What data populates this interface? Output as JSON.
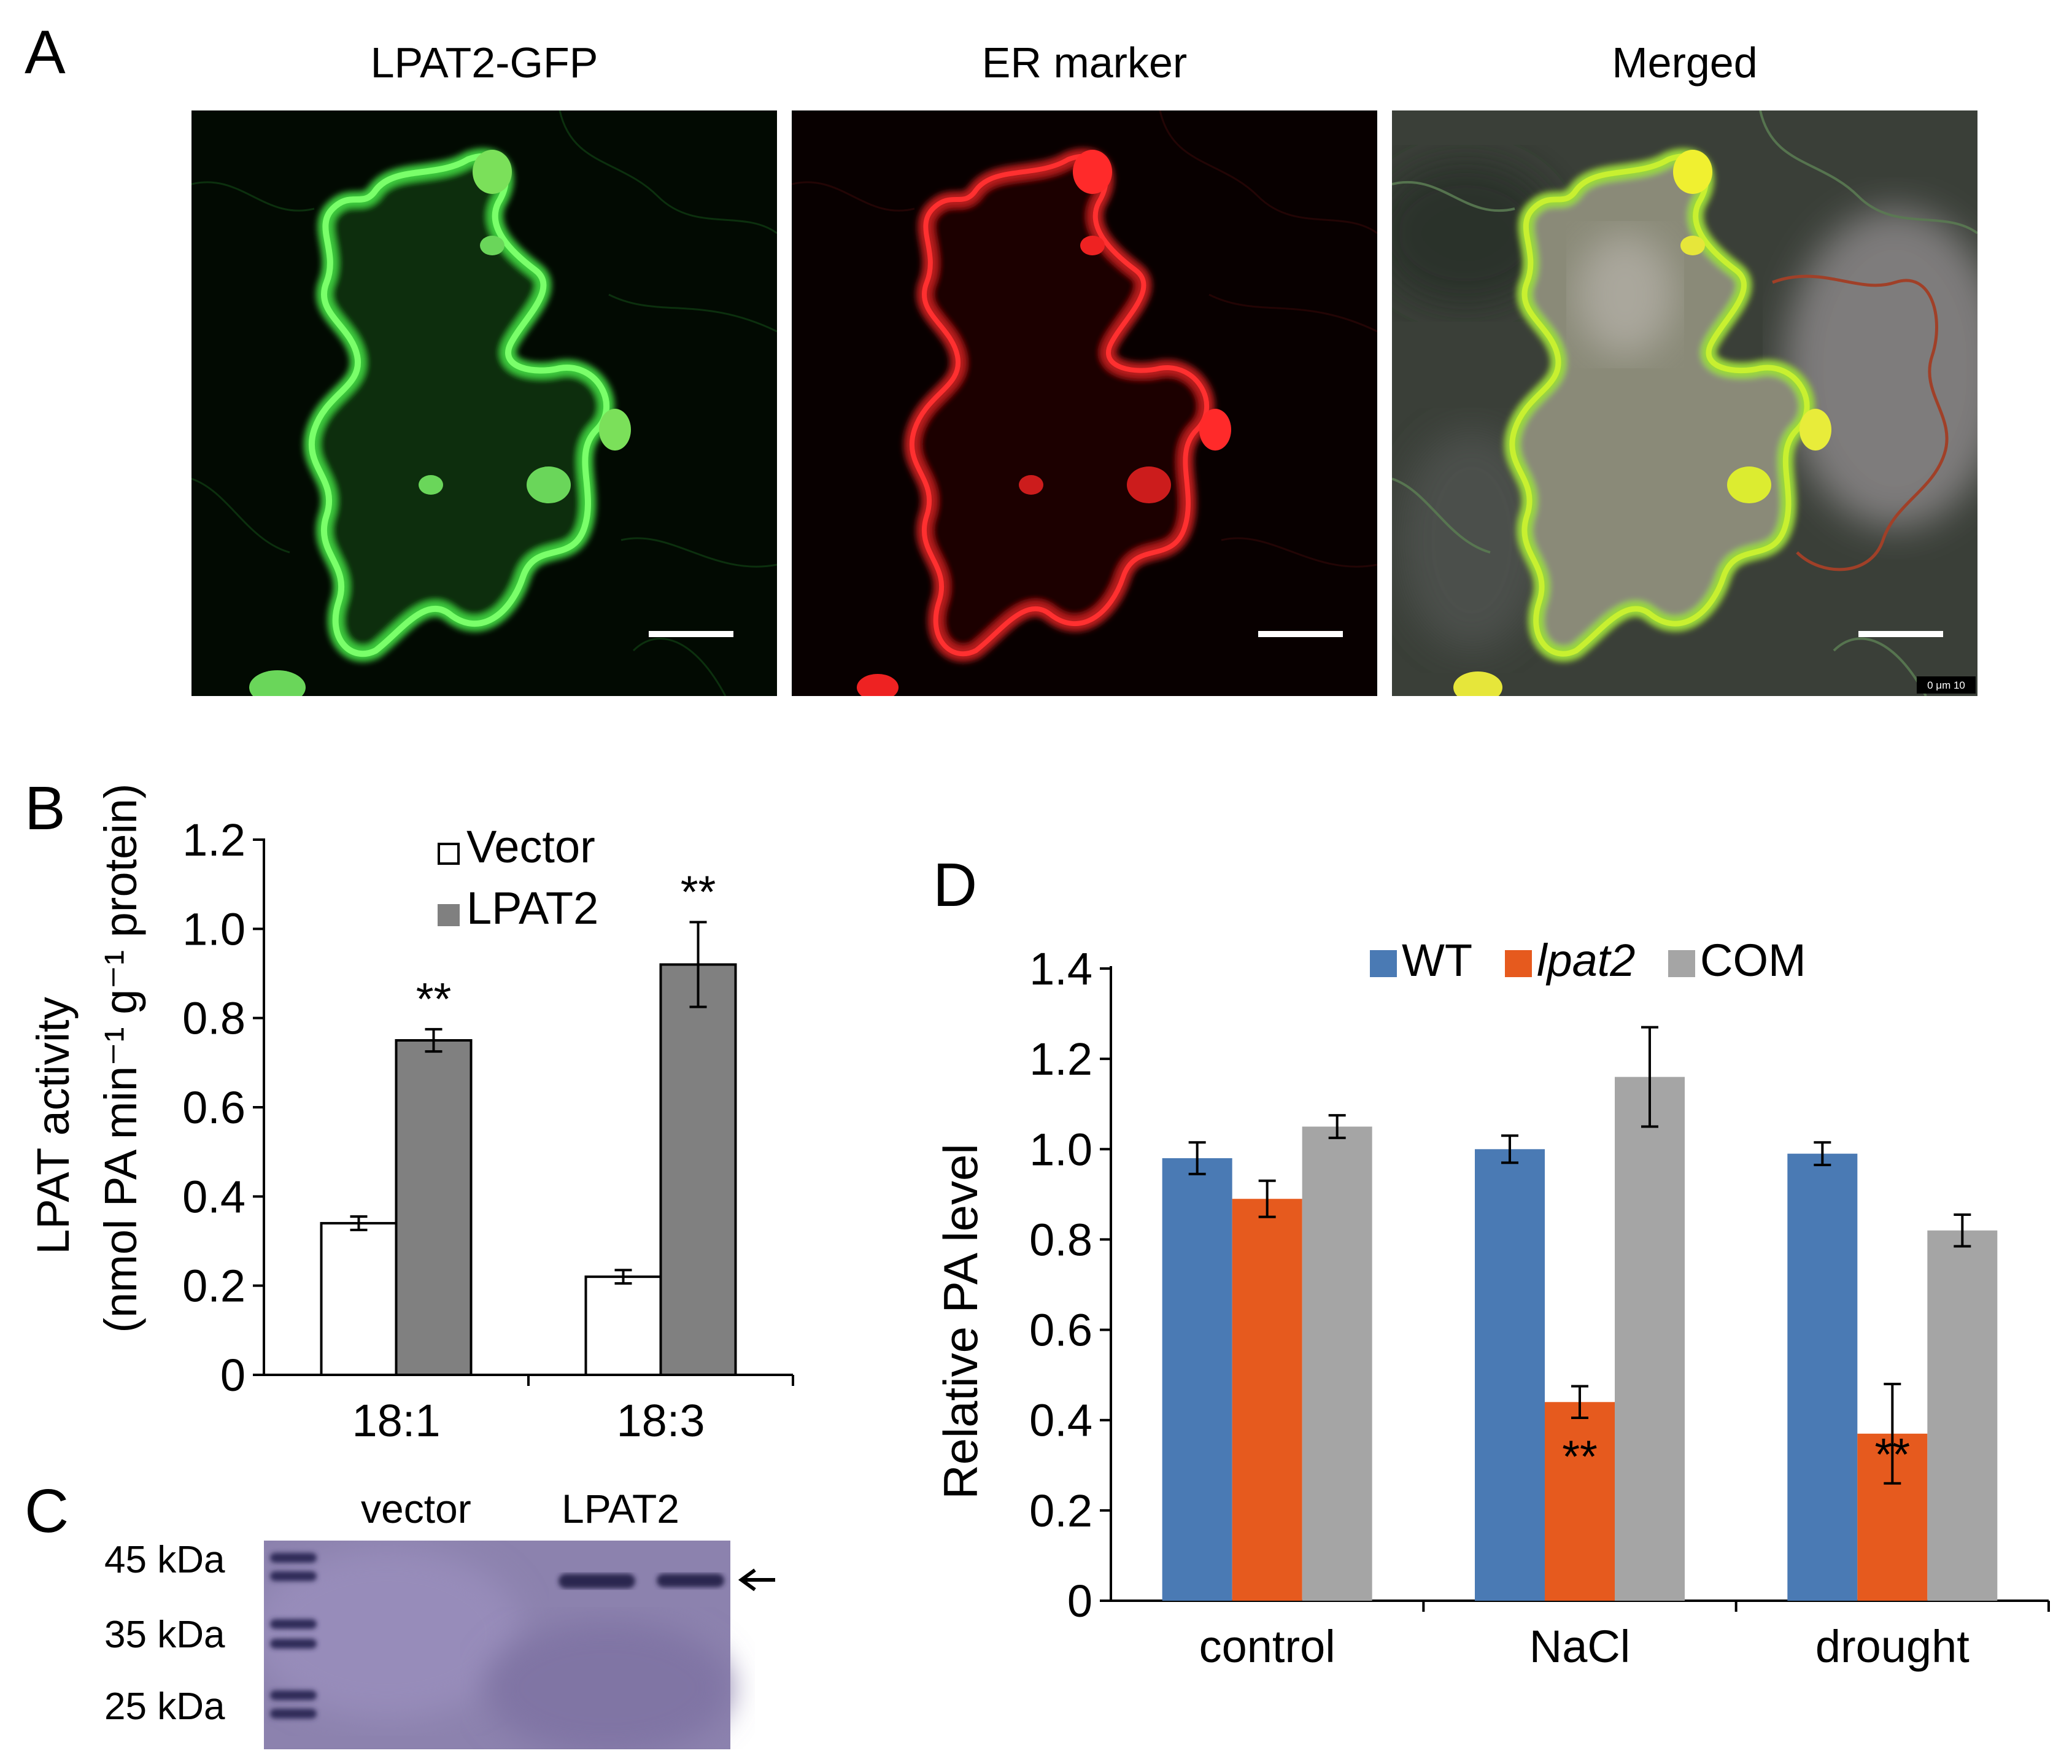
{
  "panel_a": {
    "letter": "A",
    "titles": [
      "LPAT2-GFP",
      "ER marker",
      "Merged"
    ],
    "scale_text": "0    μm 10"
  },
  "panel_b": {
    "letter": "B",
    "ylabel_line1": "LPAT activity",
    "ylabel_line2": "(nmol PA min⁻¹ g⁻¹ protein)",
    "yticks": [
      "0",
      "0.2",
      "0.4",
      "0.6",
      "0.8",
      "1.0",
      "1.2"
    ],
    "legend": [
      "Vector",
      "LPAT2"
    ],
    "sig": "**"
  },
  "panel_c": {
    "letter": "C",
    "lane_labels": [
      "vector",
      "LPAT2"
    ],
    "markers": [
      "45 kDa",
      "35 kDa",
      "25 kDa"
    ]
  },
  "panel_d": {
    "letter": "D",
    "ylabel": "Relative PA  level",
    "yticks": [
      "0",
      "0.2",
      "0.4",
      "0.6",
      "0.8",
      "1.0",
      "1.2",
      "1.4"
    ],
    "legend": [
      "WT",
      "lpat2",
      "COM"
    ],
    "sig": "**"
  },
  "chart_data": [
    {
      "type": "bar",
      "title": "",
      "xlabel": "",
      "ylabel": "LPAT activity (nmol PA min⁻¹ g⁻¹ protein)",
      "ylim": [
        0,
        1.2
      ],
      "categories": [
        "18:1",
        "18:3"
      ],
      "series": [
        {
          "name": "Vector",
          "values": [
            0.34,
            0.22
          ],
          "errors": [
            0.015,
            0.015
          ],
          "color": "#ffffff"
        },
        {
          "name": "LPAT2",
          "values": [
            0.75,
            0.92
          ],
          "errors": [
            0.025,
            0.095
          ],
          "color": "#808080"
        }
      ],
      "significance": [
        {
          "category": "18:1",
          "series": "LPAT2",
          "label": "**"
        },
        {
          "category": "18:3",
          "series": "LPAT2",
          "label": "**"
        }
      ],
      "legend_position": "top-right",
      "grid": false
    },
    {
      "type": "bar",
      "title": "",
      "xlabel": "",
      "ylabel": "Relative PA  level",
      "ylim": [
        0,
        1.4
      ],
      "categories": [
        "control",
        "NaCl",
        "drought"
      ],
      "series": [
        {
          "name": "WT",
          "values": [
            0.98,
            1.0,
            0.99
          ],
          "errors": [
            0.035,
            0.03,
            0.025
          ],
          "color": "#4a7ab4"
        },
        {
          "name": "lpat2",
          "values": [
            0.89,
            0.44,
            0.37
          ],
          "errors": [
            0.04,
            0.035,
            0.11
          ],
          "color": "#e65a1e"
        },
        {
          "name": "COM",
          "values": [
            1.05,
            1.16,
            0.82
          ],
          "errors": [
            0.025,
            0.11,
            0.035
          ],
          "color": "#a5a5a5"
        }
      ],
      "significance": [
        {
          "category": "NaCl",
          "series": "lpat2",
          "label": "**"
        },
        {
          "category": "drought",
          "series": "lpat2",
          "label": "**"
        }
      ],
      "legend_position": "top",
      "grid": false
    }
  ]
}
